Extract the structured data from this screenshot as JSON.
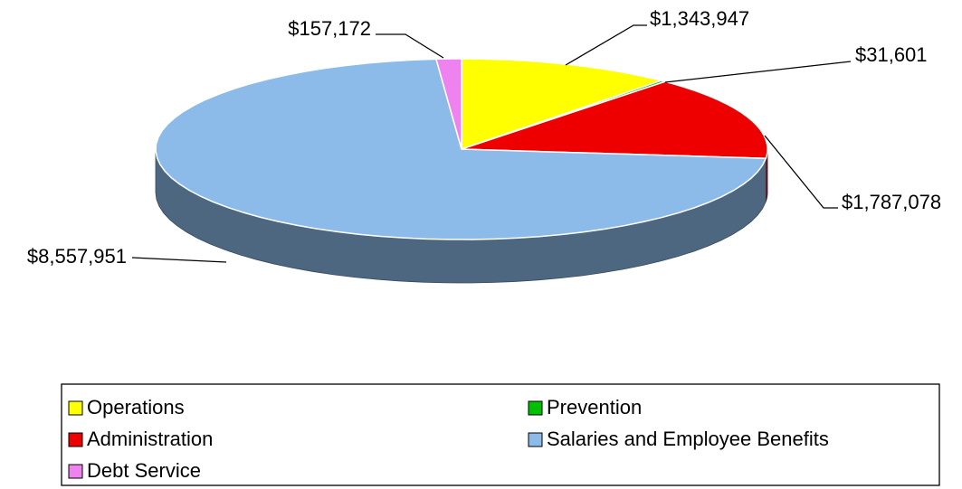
{
  "chart_data": {
    "type": "pie",
    "categories": [
      "Operations",
      "Prevention",
      "Administration",
      "Salaries and Employee Benefits",
      "Debt Service"
    ],
    "values": [
      1343947,
      31601,
      1787078,
      8557951,
      157172
    ],
    "value_labels": [
      "$1,343,947",
      "$31,601",
      "$1,787,078",
      "$8,557,951",
      "$157,172"
    ],
    "colors": [
      "#ffff00",
      "#00c000",
      "#ee0000",
      "#8cbbea",
      "#ee82ee"
    ],
    "legend": "bottom"
  }
}
